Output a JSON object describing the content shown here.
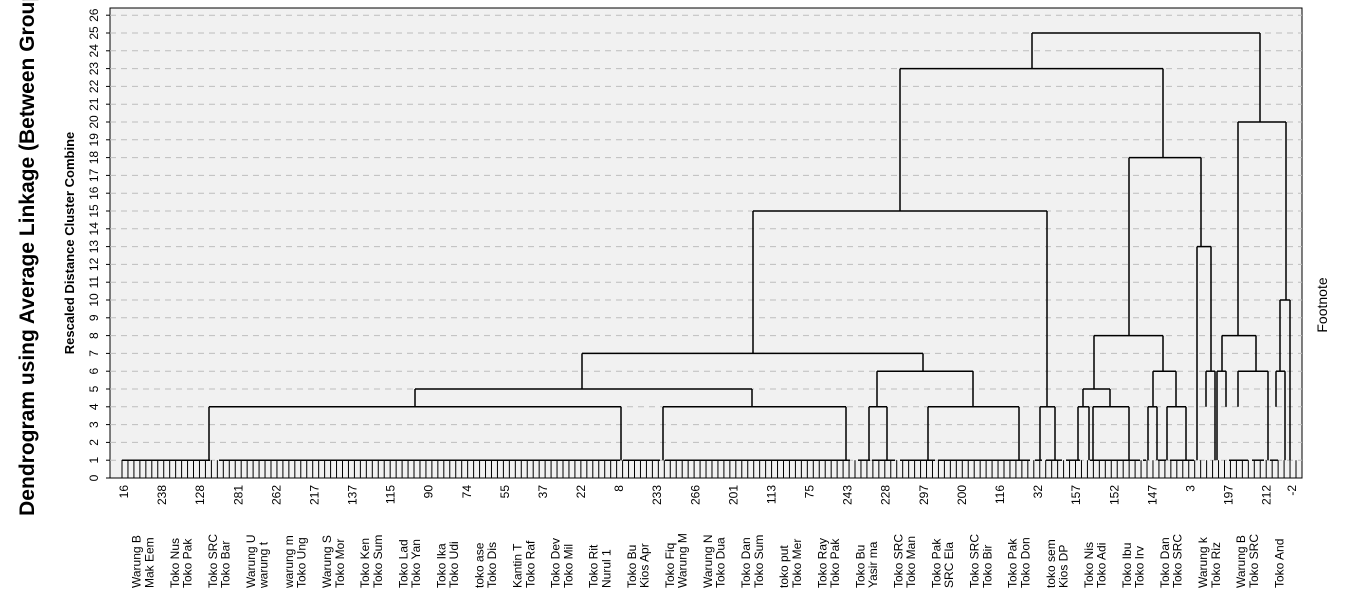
{
  "chart_data": {
    "type": "dendrogram",
    "title": "Dendrogram using Average Linkage (Between Groups)",
    "ylabel": "Rescaled Distance Cluster Combine",
    "footnote": "Footnote",
    "ylim": [
      0,
      26
    ],
    "yticks": [
      0,
      1,
      2,
      3,
      4,
      5,
      6,
      7,
      8,
      9,
      10,
      11,
      12,
      13,
      14,
      15,
      16,
      17,
      18,
      19,
      20,
      21,
      22,
      23,
      24,
      25,
      26
    ],
    "grid": true,
    "leaf_count": 198,
    "leaf_labels": [
      "16",
      "Warung B",
      "Mak Eem",
      "238",
      "Toko Nus",
      "Toko Pak",
      "128",
      "Toko SRC",
      "Toko Bar",
      "281",
      "Warung U",
      "warung t",
      "262",
      "warung m",
      "Toko Ung",
      "217",
      "Warung S",
      "Toko Mor",
      "137",
      "Toko Ken",
      "Toko Sum",
      "115",
      "Toko Lad",
      "Toko Yan",
      "90",
      "Toko Ika",
      "Toko Udi",
      "74",
      "toko ase",
      "Toko Dis",
      "55",
      "Kantin T",
      "Toko Raf",
      "37",
      "Toko Dev",
      "Toko Mil",
      "22",
      "Toko Rit",
      "Nurul 1",
      "8",
      "Toko Bu",
      "Kios Apr",
      "233",
      "Toko Fiq",
      "Warung M",
      "266",
      "Warung N",
      "Toko Dua",
      "201",
      "Toko Dan",
      "Toko Sum",
      "113",
      "toko put",
      "Toko Mer",
      "75",
      "Toko Ray",
      "Toko Pak",
      "243",
      "Toko Bu",
      "Yasir ma",
      "228",
      "Toko SRC",
      "Toko Man",
      "297",
      "Toko Pak",
      "SRC Ela",
      "200",
      "Toko SRC",
      "Toko Bir",
      "116",
      "Toko Pak",
      "Toko Don",
      "32",
      "toko sem",
      "Kios DP",
      "157",
      "Toko Nis",
      "Toko Adi",
      "152",
      "Toko Ibu",
      "Toko Irv",
      "147",
      "Toko Dan",
      "Toko SRC",
      "3",
      "Warung k",
      "Toko Riz",
      "197",
      "Warung B",
      "Toko SRC",
      "212",
      "Toko And",
      "-2"
    ],
    "segments": [
      [
        1032,
        25,
        1032,
        23
      ],
      [
        1260,
        25,
        1260,
        20
      ],
      [
        1032,
        25,
        1260,
        25
      ],
      [
        900,
        23,
        900,
        15
      ],
      [
        1163,
        23,
        1163,
        18
      ],
      [
        900,
        23,
        1163,
        23
      ],
      [
        753,
        15,
        753,
        7
      ],
      [
        1047,
        15,
        1047,
        4
      ],
      [
        753,
        15,
        1047,
        15
      ],
      [
        582,
        7,
        582,
        5
      ],
      [
        923,
        7,
        923,
        6
      ],
      [
        582,
        7,
        923,
        7
      ],
      [
        415,
        5,
        415,
        4
      ],
      [
        752,
        5,
        752,
        4
      ],
      [
        415,
        5,
        752,
        5
      ],
      [
        209,
        4,
        209,
        1
      ],
      [
        621,
        4,
        621,
        1
      ],
      [
        209,
        4,
        621,
        4
      ],
      [
        663,
        4,
        663,
        1
      ],
      [
        846,
        4,
        846,
        1
      ],
      [
        663,
        4,
        846,
        4
      ],
      [
        877,
        6,
        877,
        4
      ],
      [
        973,
        6,
        973,
        4
      ],
      [
        877,
        6,
        973,
        6
      ],
      [
        869,
        4,
        869,
        1
      ],
      [
        887,
        4,
        887,
        1
      ],
      [
        869,
        4,
        887,
        4
      ],
      [
        928,
        4,
        928,
        1
      ],
      [
        1019,
        4,
        1019,
        1
      ],
      [
        928,
        4,
        1019,
        4
      ],
      [
        1040,
        4,
        1040,
        1
      ],
      [
        1055,
        4,
        1055,
        1
      ],
      [
        1040,
        4,
        1055,
        4
      ],
      [
        1129,
        18,
        1129,
        8
      ],
      [
        1201,
        18,
        1201,
        13
      ],
      [
        1129,
        18,
        1201,
        18
      ],
      [
        1094,
        8,
        1094,
        5
      ],
      [
        1163,
        8,
        1163,
        6
      ],
      [
        1094,
        8,
        1163,
        8
      ],
      [
        1083,
        5,
        1083,
        4
      ],
      [
        1110,
        5,
        1110,
        4
      ],
      [
        1083,
        5,
        1110,
        5
      ],
      [
        1078,
        4,
        1078,
        1
      ],
      [
        1089,
        4,
        1089,
        1
      ],
      [
        1078,
        4,
        1089,
        4
      ],
      [
        1093,
        4,
        1093,
        1
      ],
      [
        1129,
        4,
        1129,
        1
      ],
      [
        1093,
        4,
        1129,
        4
      ],
      [
        1153,
        6,
        1153,
        4
      ],
      [
        1176,
        6,
        1176,
        4
      ],
      [
        1153,
        6,
        1176,
        6
      ],
      [
        1148,
        4,
        1148,
        1
      ],
      [
        1157,
        4,
        1157,
        1
      ],
      [
        1148,
        4,
        1157,
        4
      ],
      [
        1167,
        4,
        1167,
        1
      ],
      [
        1186,
        4,
        1186,
        1
      ],
      [
        1167,
        4,
        1186,
        4
      ],
      [
        1197,
        13,
        1197,
        1
      ],
      [
        1211,
        13,
        1211,
        6
      ],
      [
        1197,
        13,
        1211,
        13
      ],
      [
        1206,
        6,
        1206,
        4
      ],
      [
        1215,
        6,
        1215,
        1
      ],
      [
        1206,
        6,
        1215,
        6
      ],
      [
        1238,
        20,
        1238,
        8
      ],
      [
        1286,
        20,
        1286,
        10
      ],
      [
        1238,
        20,
        1286,
        20
      ],
      [
        1222,
        8,
        1222,
        6
      ],
      [
        1256,
        8,
        1256,
        6
      ],
      [
        1222,
        8,
        1256,
        8
      ],
      [
        1217,
        6,
        1217,
        1
      ],
      [
        1226,
        6,
        1226,
        4
      ],
      [
        1217,
        6,
        1226,
        6
      ],
      [
        1238,
        6,
        1238,
        4
      ],
      [
        1268,
        6,
        1268,
        1
      ],
      [
        1238,
        6,
        1268,
        6
      ],
      [
        1280,
        10,
        1280,
        6
      ],
      [
        1290,
        10,
        1290,
        1
      ],
      [
        1280,
        10,
        1290,
        10
      ],
      [
        1276,
        6,
        1276,
        4
      ],
      [
        1285,
        6,
        1285,
        1
      ],
      [
        1276,
        6,
        1285,
        6
      ]
    ],
    "bracket_groups": [
      [
        122,
        210
      ],
      [
        219,
        620
      ],
      [
        623,
        660
      ],
      [
        665,
        850
      ],
      [
        858,
        870
      ],
      [
        872,
        895
      ],
      [
        900,
        935
      ],
      [
        938,
        1030
      ],
      [
        1035,
        1042
      ],
      [
        1046,
        1062
      ],
      [
        1066,
        1080
      ],
      [
        1090,
        1140
      ],
      [
        1143,
        1146
      ],
      [
        1158,
        1166
      ],
      [
        1170,
        1194
      ],
      [
        1229,
        1248
      ],
      [
        1252,
        1264
      ],
      [
        1270,
        1278
      ]
    ]
  }
}
